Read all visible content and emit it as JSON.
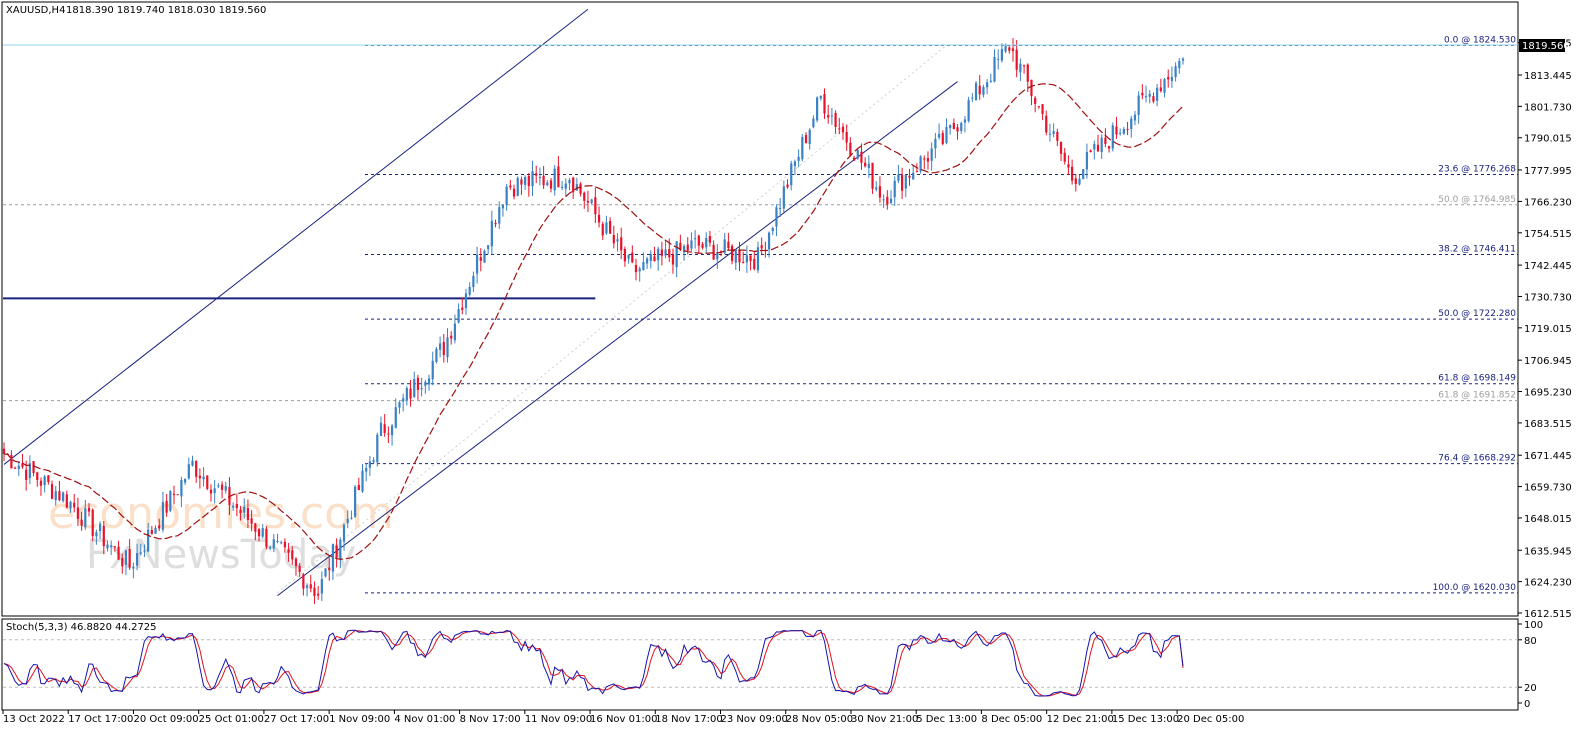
{
  "header": {
    "symbol": "XAUUSD,H4",
    "ohlc": "1818.390 1819.740 1818.030 1819.560"
  },
  "current_price_label": "1819.560",
  "colors": {
    "up": "#3b82c4",
    "down": "#e8132a",
    "ma": "#a01010",
    "fib_blue": "#1a237e",
    "fib_grey": "#9e9e9e",
    "channel": "#1a237e",
    "stoch_main": "#1515b0",
    "stoch_signal": "#e0141e"
  },
  "chart_data": [
    {
      "type": "candlestick",
      "title": "",
      "ylim": [
        1612.515,
        1831.0
      ],
      "y_ticks": [
        "1825.515",
        "1813.445",
        "1801.730",
        "1790.015",
        "1777.995",
        "1766.230",
        "1754.515",
        "1742.445",
        "1730.730",
        "1719.015",
        "1706.945",
        "1695.230",
        "1683.515",
        "1671.445",
        "1659.730",
        "1648.015",
        "1635.945",
        "1624.230",
        "1612.515"
      ],
      "x_ticks": [
        "13 Oct 2022",
        "17 Oct 17:00",
        "20 Oct 09:00",
        "25 Oct 01:00",
        "27 Oct 17:00",
        "1 Nov 09:00",
        "4 Nov 01:00",
        "8 Nov 17:00",
        "11 Nov 09:00",
        "16 Nov 01:00",
        "18 Nov 17:00",
        "23 Nov 09:00",
        "28 Nov 05:00",
        "30 Nov 21:00",
        "5 Dec 13:00",
        "8 Dec 05:00",
        "12 Dec 21:00",
        "15 Dec 13:00",
        "20 Dec 05:00"
      ],
      "anchors_x": [
        0,
        17,
        34,
        51,
        68,
        85,
        102,
        119,
        136,
        153,
        170,
        187,
        204,
        221,
        238,
        255,
        272,
        289,
        306,
        319
      ],
      "anchors_close": [
        1672,
        1655,
        1630,
        1668,
        1645,
        1620,
        1680,
        1712,
        1772,
        1776,
        1740,
        1750,
        1745,
        1805,
        1768,
        1790,
        1824.53,
        1775,
        1800,
        1819.56
      ],
      "bar_count": 320,
      "fib_levels": [
        {
          "label": "0.0 @ 1824.530",
          "value": 1824.53,
          "style": "blue"
        },
        {
          "label": "23.6 @ 1776.268",
          "value": 1776.268,
          "style": "blue"
        },
        {
          "label": "50.0 @ 1764.985",
          "value": 1764.985,
          "style": "grey"
        },
        {
          "label": "38.2 @ 1746.411",
          "value": 1746.411,
          "style": "blue"
        },
        {
          "label": "50.0 @ 1722.280",
          "value": 1722.28,
          "style": "blue"
        },
        {
          "label": "61.8 @ 1698.149",
          "value": 1698.149,
          "style": "blue"
        },
        {
          "label": "61.8 @ 1691.852",
          "value": 1691.852,
          "style": "grey"
        },
        {
          "label": "76.4 @ 1668.292",
          "value": 1668.292,
          "style": "blue"
        },
        {
          "label": "100.0 @ 1620.030",
          "value": 1620.03,
          "style": "blue"
        }
      ],
      "support_line": {
        "value": 1730.0,
        "x_end_bar": 160
      },
      "channel_lower": [
        {
          "bar": 74,
          "value": 1619
        },
        {
          "bar": 258,
          "value": 1811
        }
      ],
      "channel_upper": [
        {
          "bar": 0,
          "value": 1668
        },
        {
          "bar": 158,
          "value": 1838
        }
      ],
      "watermark": [
        "economies.com",
        "FxNewsToday"
      ]
    },
    {
      "type": "line",
      "title": "Stoch(5,3,3) 46.8820 44.2725",
      "ylim": [
        0,
        100
      ],
      "y_ticks": [
        "100",
        "80",
        "20",
        "0"
      ],
      "levels": [
        80,
        20
      ],
      "series": [
        {
          "name": "",
          "role": "main"
        },
        {
          "name": "",
          "role": "signal"
        }
      ],
      "last_values": [
        46.882,
        44.2725
      ]
    }
  ]
}
